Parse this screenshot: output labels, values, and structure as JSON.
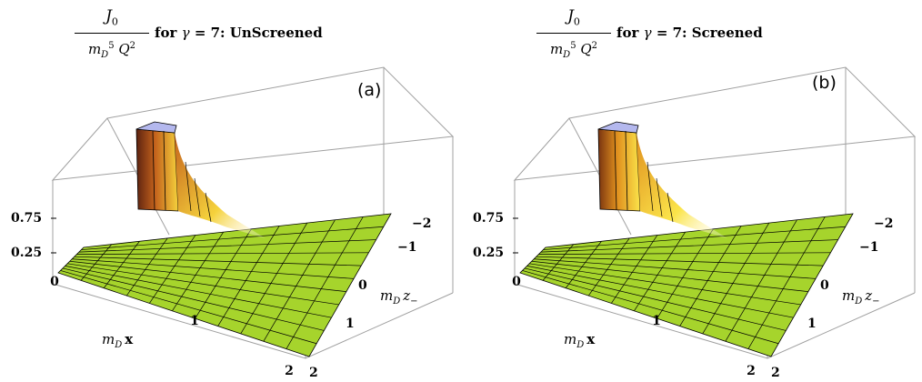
{
  "chart_data": [
    {
      "type": "surface",
      "panel_label": "(a)",
      "title": {
        "fraction_numerator": "J",
        "numerator_sub": "0",
        "denominator_m": "m",
        "denominator_sub": "D",
        "denominator_sup": "5",
        "denominator_q": "Q",
        "denominator_q_sup": "2",
        "rest_prefix": "for",
        "gamma_symbol": "γ",
        "rest_suffix": "= 7: UnScreened"
      },
      "x_axis": {
        "label_m": "m",
        "label_sub": "D",
        "label_var": "x",
        "ticks": [
          "0",
          "1",
          "2"
        ],
        "range": [
          0,
          2
        ]
      },
      "z_axis": {
        "label_m": "m",
        "label_sub": "D",
        "label_var": "z",
        "label_var_sub": "−",
        "ticks": [
          "−2",
          "−1",
          "0",
          "1",
          "2"
        ],
        "range": [
          -2,
          2
        ]
      },
      "vertical_axis": {
        "ticks": [
          "0.75",
          "0.25"
        ]
      },
      "surface_color": "#a6d42c",
      "peak_colors": {
        "dark": "#5c2210",
        "mid": "#c4621c",
        "light": "#f5d23c",
        "top": "#b4b8ee"
      },
      "peak": {
        "x": 0,
        "z": 0,
        "height": 1.0
      }
    },
    {
      "type": "surface",
      "panel_label": "(b)",
      "title": {
        "fraction_numerator": "J",
        "numerator_sub": "0",
        "denominator_m": "m",
        "denominator_sub": "D",
        "denominator_sup": "5",
        "denominator_q": "Q",
        "denominator_q_sup": "2",
        "rest_prefix": "for",
        "gamma_symbol": "γ",
        "rest_suffix": "= 7: Screened"
      },
      "x_axis": {
        "label_m": "m",
        "label_sub": "D",
        "label_var": "x",
        "ticks": [
          "0",
          "1",
          "2"
        ],
        "range": [
          0,
          2
        ]
      },
      "z_axis": {
        "label_m": "m",
        "label_sub": "D",
        "label_var": "z",
        "label_var_sub": "−",
        "ticks": [
          "−2",
          "−1",
          "0",
          "1",
          "2"
        ],
        "range": [
          -2,
          2
        ]
      },
      "vertical_axis": {
        "ticks": [
          "0.75",
          "0.25"
        ]
      },
      "surface_color": "#a6d42c",
      "peak_colors": {
        "dark": "#7a3410",
        "mid": "#e0901e",
        "light": "#fbe44a",
        "top": "#b4b8ee"
      },
      "peak": {
        "x": 0,
        "z": 0,
        "height": 1.0
      }
    }
  ]
}
